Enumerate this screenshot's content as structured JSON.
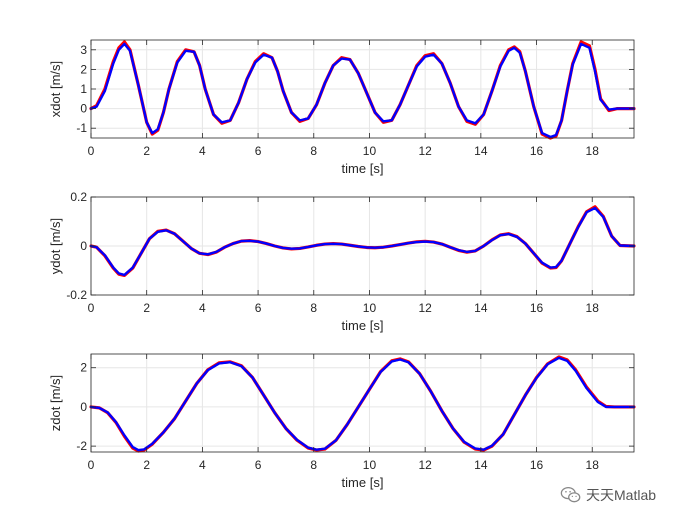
{
  "colors": {
    "reference": "#ff0000",
    "actual": "#0000ff",
    "grid": "#e6e6e6",
    "axis": "#262626"
  },
  "watermark": {
    "text": "天天Matlab",
    "icon": "wechat-icon"
  },
  "chart_data": [
    {
      "type": "line",
      "xlabel": "time [s]",
      "ylabel": "xdot [m/s]",
      "xlim": [
        0,
        19.5
      ],
      "ylim": [
        -1.5,
        3.5
      ],
      "xticks": [
        0,
        2,
        4,
        6,
        8,
        10,
        12,
        14,
        16,
        18
      ],
      "yticks": [
        -1,
        0,
        1,
        2,
        3
      ],
      "grid": true,
      "series": [
        {
          "color": "#ff0000",
          "x": [
            0,
            0.2,
            0.5,
            0.8,
            1.0,
            1.2,
            1.4,
            1.7,
            2.0,
            2.2,
            2.4,
            2.6,
            2.8,
            3.1,
            3.4,
            3.7,
            3.9,
            4.1,
            4.4,
            4.7,
            5.0,
            5.3,
            5.6,
            5.9,
            6.2,
            6.5,
            6.7,
            6.9,
            7.2,
            7.5,
            7.8,
            8.1,
            8.4,
            8.7,
            9.0,
            9.3,
            9.6,
            9.9,
            10.2,
            10.5,
            10.8,
            11.1,
            11.4,
            11.7,
            12.0,
            12.3,
            12.6,
            12.9,
            13.2,
            13.5,
            13.8,
            14.1,
            14.4,
            14.7,
            15.0,
            15.2,
            15.4,
            15.6,
            15.9,
            16.2,
            16.5,
            16.7,
            16.9,
            17.1,
            17.3,
            17.6,
            17.9,
            18.1,
            18.3,
            18.6,
            18.9,
            19.1,
            19.5
          ],
          "y": [
            0,
            0.15,
            1.0,
            2.4,
            3.1,
            3.4,
            3.0,
            1.2,
            -0.7,
            -1.3,
            -1.1,
            -0.2,
            1.0,
            2.4,
            3.0,
            2.9,
            2.2,
            1.0,
            -0.3,
            -0.75,
            -0.6,
            0.3,
            1.5,
            2.4,
            2.8,
            2.6,
            1.9,
            0.9,
            -0.2,
            -0.65,
            -0.5,
            0.2,
            1.3,
            2.2,
            2.6,
            2.5,
            1.8,
            0.8,
            -0.2,
            -0.7,
            -0.6,
            0.2,
            1.2,
            2.2,
            2.7,
            2.8,
            2.3,
            1.3,
            0.1,
            -0.65,
            -0.8,
            -0.3,
            0.9,
            2.2,
            3.0,
            3.15,
            2.9,
            1.9,
            0.1,
            -1.3,
            -1.5,
            -1.4,
            -0.6,
            0.9,
            2.3,
            3.4,
            3.2,
            2.0,
            0.5,
            -0.1,
            0.0,
            0.0,
            0.0
          ]
        },
        {
          "color": "#0000ff",
          "x": [
            0,
            0.2,
            0.5,
            0.8,
            1.0,
            1.2,
            1.4,
            1.7,
            2.0,
            2.2,
            2.4,
            2.6,
            2.8,
            3.1,
            3.4,
            3.7,
            3.9,
            4.1,
            4.4,
            4.7,
            5.0,
            5.3,
            5.6,
            5.9,
            6.2,
            6.5,
            6.7,
            6.9,
            7.2,
            7.5,
            7.8,
            8.1,
            8.4,
            8.7,
            9.0,
            9.3,
            9.6,
            9.9,
            10.2,
            10.5,
            10.8,
            11.1,
            11.4,
            11.7,
            12.0,
            12.3,
            12.6,
            12.9,
            13.2,
            13.5,
            13.8,
            14.1,
            14.4,
            14.7,
            15.0,
            15.2,
            15.4,
            15.6,
            15.9,
            16.2,
            16.5,
            16.7,
            16.9,
            17.1,
            17.3,
            17.6,
            17.9,
            18.1,
            18.3,
            18.6,
            18.9,
            19.1,
            19.5
          ],
          "y": [
            0,
            0.1,
            0.9,
            2.3,
            3.0,
            3.3,
            2.95,
            1.2,
            -0.7,
            -1.25,
            -1.05,
            -0.2,
            1.0,
            2.35,
            2.95,
            2.9,
            2.2,
            1.0,
            -0.3,
            -0.7,
            -0.6,
            0.3,
            1.5,
            2.35,
            2.75,
            2.6,
            1.9,
            0.9,
            -0.2,
            -0.6,
            -0.5,
            0.2,
            1.3,
            2.2,
            2.55,
            2.5,
            1.8,
            0.8,
            -0.2,
            -0.65,
            -0.6,
            0.2,
            1.2,
            2.15,
            2.65,
            2.75,
            2.3,
            1.3,
            0.1,
            -0.6,
            -0.75,
            -0.3,
            0.9,
            2.15,
            2.95,
            3.1,
            2.85,
            1.9,
            0.1,
            -1.25,
            -1.45,
            -1.35,
            -0.6,
            0.9,
            2.25,
            3.3,
            3.1,
            1.9,
            0.45,
            -0.05,
            0.0,
            0.0,
            0.0
          ]
        }
      ]
    },
    {
      "type": "line",
      "xlabel": "time [s]",
      "ylabel": "ydot [m/s]",
      "xlim": [
        0,
        19.5
      ],
      "ylim": [
        -0.2,
        0.2
      ],
      "xticks": [
        0,
        2,
        4,
        6,
        8,
        10,
        12,
        14,
        16,
        18
      ],
      "yticks": [
        -0.2,
        0,
        0.2
      ],
      "grid": true,
      "series": [
        {
          "color": "#ff0000",
          "x": [
            0,
            0.2,
            0.5,
            0.8,
            1.0,
            1.2,
            1.5,
            1.8,
            2.1,
            2.4,
            2.7,
            3.0,
            3.3,
            3.6,
            3.9,
            4.2,
            4.5,
            4.8,
            5.1,
            5.4,
            5.7,
            6.0,
            6.3,
            6.6,
            6.9,
            7.2,
            7.5,
            7.8,
            8.1,
            8.4,
            8.7,
            9.0,
            9.3,
            9.6,
            9.9,
            10.2,
            10.5,
            10.8,
            11.1,
            11.4,
            11.7,
            12.0,
            12.3,
            12.6,
            12.9,
            13.2,
            13.5,
            13.8,
            14.1,
            14.4,
            14.7,
            15.0,
            15.3,
            15.6,
            15.9,
            16.2,
            16.5,
            16.7,
            16.9,
            17.2,
            17.5,
            17.8,
            18.1,
            18.4,
            18.7,
            19.0,
            19.5
          ],
          "y": [
            0,
            -0.005,
            -0.04,
            -0.09,
            -0.115,
            -0.12,
            -0.09,
            -0.03,
            0.03,
            0.06,
            0.065,
            0.05,
            0.02,
            -0.01,
            -0.03,
            -0.035,
            -0.025,
            -0.005,
            0.01,
            0.02,
            0.022,
            0.018,
            0.01,
            0.0,
            -0.008,
            -0.012,
            -0.01,
            -0.004,
            0.003,
            0.008,
            0.01,
            0.008,
            0.003,
            -0.002,
            -0.006,
            -0.007,
            -0.005,
            0.0,
            0.006,
            0.012,
            0.017,
            0.019,
            0.016,
            0.008,
            -0.005,
            -0.018,
            -0.025,
            -0.02,
            0.0,
            0.025,
            0.045,
            0.05,
            0.038,
            0.01,
            -0.03,
            -0.07,
            -0.09,
            -0.088,
            -0.06,
            0.01,
            0.08,
            0.14,
            0.16,
            0.12,
            0.04,
            0.002,
            0.0
          ]
        },
        {
          "color": "#0000ff",
          "x": [
            0,
            0.2,
            0.5,
            0.8,
            1.0,
            1.2,
            1.5,
            1.8,
            2.1,
            2.4,
            2.7,
            3.0,
            3.3,
            3.6,
            3.9,
            4.2,
            4.5,
            4.8,
            5.1,
            5.4,
            5.7,
            6.0,
            6.3,
            6.6,
            6.9,
            7.2,
            7.5,
            7.8,
            8.1,
            8.4,
            8.7,
            9.0,
            9.3,
            9.6,
            9.9,
            10.2,
            10.5,
            10.8,
            11.1,
            11.4,
            11.7,
            12.0,
            12.3,
            12.6,
            12.9,
            13.2,
            13.5,
            13.8,
            14.1,
            14.4,
            14.7,
            15.0,
            15.3,
            15.6,
            15.9,
            16.2,
            16.5,
            16.7,
            16.9,
            17.2,
            17.5,
            17.8,
            18.1,
            18.4,
            18.7,
            19.0,
            19.5
          ],
          "y": [
            0,
            -0.005,
            -0.038,
            -0.088,
            -0.112,
            -0.118,
            -0.088,
            -0.03,
            0.03,
            0.058,
            0.064,
            0.05,
            0.02,
            -0.01,
            -0.03,
            -0.034,
            -0.024,
            -0.005,
            0.01,
            0.02,
            0.021,
            0.018,
            0.01,
            0.0,
            -0.008,
            -0.011,
            -0.01,
            -0.004,
            0.003,
            0.008,
            0.009,
            0.008,
            0.003,
            -0.002,
            -0.006,
            -0.007,
            -0.005,
            0.0,
            0.006,
            0.012,
            0.016,
            0.018,
            0.016,
            0.008,
            -0.005,
            -0.017,
            -0.024,
            -0.02,
            0.0,
            0.024,
            0.044,
            0.049,
            0.037,
            0.01,
            -0.03,
            -0.068,
            -0.088,
            -0.086,
            -0.06,
            0.01,
            0.078,
            0.138,
            0.155,
            0.118,
            0.04,
            0.002,
            0.0
          ]
        }
      ]
    },
    {
      "type": "line",
      "xlabel": "time [s]",
      "ylabel": "zdot [m/s]",
      "xlim": [
        0,
        19.5
      ],
      "ylim": [
        -2.3,
        2.7
      ],
      "xticks": [
        0,
        2,
        4,
        6,
        8,
        10,
        12,
        14,
        16,
        18
      ],
      "yticks": [
        -2,
        0,
        2
      ],
      "grid": true,
      "series": [
        {
          "color": "#ff0000",
          "x": [
            0,
            0.3,
            0.6,
            0.9,
            1.2,
            1.5,
            1.7,
            1.9,
            2.2,
            2.6,
            3.0,
            3.4,
            3.8,
            4.2,
            4.6,
            5.0,
            5.4,
            5.8,
            6.2,
            6.6,
            7.0,
            7.4,
            7.8,
            8.1,
            8.4,
            8.8,
            9.2,
            9.6,
            10.0,
            10.4,
            10.8,
            11.1,
            11.4,
            11.8,
            12.2,
            12.6,
            13.0,
            13.4,
            13.8,
            14.1,
            14.4,
            14.8,
            15.2,
            15.6,
            16.0,
            16.4,
            16.8,
            17.1,
            17.4,
            17.8,
            18.2,
            18.5,
            18.8,
            19.1,
            19.5
          ],
          "y": [
            0,
            -0.05,
            -0.3,
            -0.8,
            -1.5,
            -2.1,
            -2.25,
            -2.2,
            -1.9,
            -1.3,
            -0.6,
            0.3,
            1.2,
            1.9,
            2.25,
            2.3,
            2.1,
            1.5,
            0.6,
            -0.3,
            -1.1,
            -1.7,
            -2.1,
            -2.2,
            -2.15,
            -1.7,
            -0.9,
            0.0,
            0.9,
            1.8,
            2.35,
            2.45,
            2.3,
            1.7,
            0.8,
            -0.2,
            -1.1,
            -1.8,
            -2.15,
            -2.2,
            -2.0,
            -1.4,
            -0.4,
            0.6,
            1.5,
            2.2,
            2.55,
            2.4,
            1.9,
            1.0,
            0.3,
            0.02,
            0.0,
            0.0,
            0.0
          ]
        },
        {
          "color": "#0000ff",
          "x": [
            0,
            0.3,
            0.6,
            0.9,
            1.2,
            1.5,
            1.7,
            1.9,
            2.2,
            2.6,
            3.0,
            3.4,
            3.8,
            4.2,
            4.6,
            5.0,
            5.4,
            5.8,
            6.2,
            6.6,
            7.0,
            7.4,
            7.8,
            8.1,
            8.4,
            8.8,
            9.2,
            9.6,
            10.0,
            10.4,
            10.8,
            11.1,
            11.4,
            11.8,
            12.2,
            12.6,
            13.0,
            13.4,
            13.8,
            14.1,
            14.4,
            14.8,
            15.2,
            15.6,
            16.0,
            16.4,
            16.8,
            17.1,
            17.4,
            17.8,
            18.2,
            18.5,
            18.8,
            19.1,
            19.5
          ],
          "y": [
            0,
            -0.05,
            -0.28,
            -0.78,
            -1.45,
            -2.05,
            -2.2,
            -2.17,
            -1.88,
            -1.3,
            -0.6,
            0.3,
            1.2,
            1.88,
            2.22,
            2.28,
            2.08,
            1.5,
            0.6,
            -0.3,
            -1.1,
            -1.68,
            -2.08,
            -2.18,
            -2.13,
            -1.7,
            -0.9,
            0.0,
            0.9,
            1.78,
            2.32,
            2.42,
            2.28,
            1.7,
            0.8,
            -0.2,
            -1.1,
            -1.78,
            -2.12,
            -2.18,
            -1.98,
            -1.4,
            -0.4,
            0.6,
            1.48,
            2.18,
            2.5,
            2.35,
            1.85,
            0.95,
            0.25,
            0.0,
            0.0,
            0.0,
            0.0
          ]
        }
      ]
    }
  ]
}
